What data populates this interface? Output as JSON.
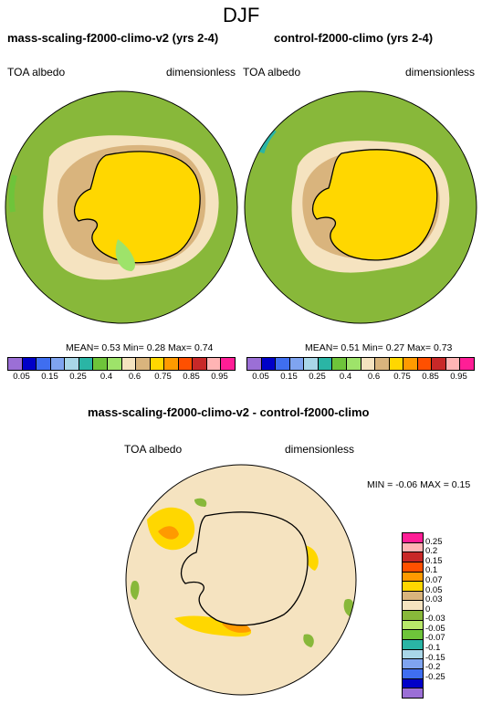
{
  "page": {
    "title": "DJF"
  },
  "panels": [
    {
      "title": "mass-scaling-f2000-climo-v2 (yrs 2-4)",
      "left_label": "TOA albedo",
      "right_label": "dimensionless",
      "stats": "MEAN=  0.53  Min=  0.28  Max=  0.74"
    },
    {
      "title": "control-f2000-climo (yrs 2-4)",
      "left_label": "TOA albedo",
      "right_label": "dimensionless",
      "stats": "MEAN=  0.51  Min=  0.27  Max=  0.73"
    }
  ],
  "colorbar": {
    "colors": [
      "#9b6fd6",
      "#0000c8",
      "#3f6ef0",
      "#7fa4f0",
      "#a9d6e8",
      "#2ab5a5",
      "#6ec43a",
      "#9ee36a",
      "#f5e3c0",
      "#d9b47d",
      "#ffd700",
      "#ff9a00",
      "#ff5000",
      "#c82828",
      "#ffb4b4",
      "#ff1e96"
    ],
    "labels": [
      "0.05",
      "0.15",
      "0.25",
      "0.4",
      "0.6",
      "0.75",
      "0.85",
      "0.95"
    ]
  },
  "diff": {
    "title": "mass-scaling-f2000-climo-v2 - control-f2000-climo",
    "left_label": "TOA albedo",
    "right_label": "dimensionless",
    "stats": "MIN = -0.06 MAX =  0.15",
    "colors": [
      "#ff1e96",
      "#ffb4b4",
      "#c82828",
      "#ff5000",
      "#ff9a00",
      "#ffd700",
      "#d9b47d",
      "#f5e3c0",
      "#88b83a",
      "#b8e86a",
      "#6ec43a",
      "#2ab5a5",
      "#a9d6e8",
      "#7fa4f0",
      "#3f6ef0",
      "#0000c8",
      "#9b6fd6"
    ],
    "labels": [
      "0.25",
      "0.2",
      "0.15",
      "0.1",
      "0.07",
      "0.05",
      "0.03",
      "0",
      "-0.03",
      "-0.05",
      "-0.07",
      "-0.1",
      "-0.15",
      "-0.2",
      "-0.25"
    ]
  }
}
